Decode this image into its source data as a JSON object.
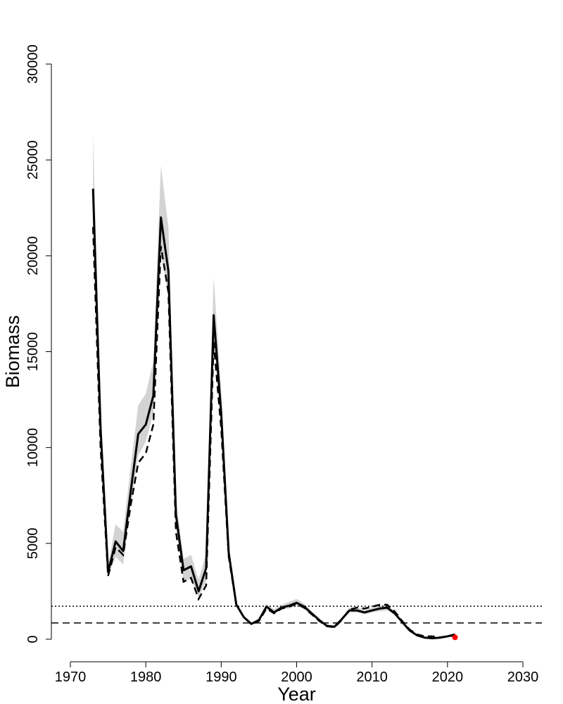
{
  "chart_data": {
    "type": "line",
    "title": "",
    "xlabel": "Year",
    "ylabel": "Biomass",
    "xlim": [
      1970,
      2030
    ],
    "ylim": [
      0,
      30000
    ],
    "x_ticks": [
      1970,
      1980,
      1990,
      2000,
      2010,
      2020,
      2030
    ],
    "y_ticks": [
      0,
      5000,
      10000,
      15000,
      20000,
      25000,
      30000
    ],
    "grid": false,
    "legend": "none",
    "years": [
      1973,
      1974,
      1975,
      1976,
      1977,
      1978,
      1979,
      1980,
      1981,
      1982,
      1983,
      1984,
      1985,
      1986,
      1987,
      1988,
      1989,
      1990,
      1991,
      1992,
      1993,
      1994,
      1995,
      1996,
      1997,
      1998,
      1999,
      2000,
      2001,
      2002,
      2003,
      2004,
      2005,
      2006,
      2007,
      2008,
      2009,
      2010,
      2011,
      2012,
      2013,
      2014,
      2015,
      2016,
      2017,
      2018,
      2019,
      2020,
      2021
    ],
    "series": [
      {
        "style": "solid",
        "values": [
          23500,
          11000,
          3500,
          5100,
          4600,
          7700,
          10700,
          11200,
          12700,
          22000,
          19200,
          6500,
          3600,
          3800,
          2500,
          3700,
          16900,
          11800,
          4500,
          1800,
          1150,
          800,
          1000,
          1700,
          1400,
          1650,
          1750,
          1900,
          1700,
          1350,
          1000,
          700,
          650,
          1050,
          1500,
          1500,
          1400,
          1500,
          1600,
          1650,
          1350,
          900,
          450,
          200,
          80,
          50,
          80,
          150,
          250
        ]
      },
      {
        "style": "dashed",
        "values": [
          21500,
          10000,
          3300,
          4800,
          4400,
          7000,
          9200,
          9700,
          11200,
          20500,
          18100,
          5600,
          3000,
          3200,
          2100,
          2800,
          15500,
          11000,
          4300,
          1800,
          1150,
          780,
          950,
          1600,
          1350,
          1600,
          1700,
          1850,
          1650,
          1300,
          950,
          680,
          620,
          1000,
          1550,
          1650,
          1600,
          1700,
          1800,
          1800,
          1450,
          950,
          500,
          250,
          150,
          150,
          100,
          150,
          200
        ]
      },
      {
        "style": "band",
        "lower": [
          22000,
          10600,
          3300,
          4300,
          3900,
          7000,
          9600,
          10300,
          11800,
          20200,
          17800,
          5900,
          3100,
          3100,
          2200,
          3000,
          15700,
          11000,
          4300,
          1750,
          1100,
          770,
          950,
          1600,
          1300,
          1550,
          1600,
          1750,
          1550,
          1250,
          950,
          680,
          620,
          1000,
          1400,
          1400,
          1300,
          1400,
          1450,
          1500,
          1250,
          850,
          420,
          180,
          70,
          40,
          60,
          130,
          230
        ],
        "upper": [
          26400,
          12000,
          3900,
          6000,
          5600,
          9000,
          12200,
          12800,
          14500,
          24700,
          21500,
          7300,
          4200,
          4400,
          3100,
          4500,
          18900,
          13000,
          4900,
          1950,
          1250,
          870,
          1080,
          1850,
          1550,
          1800,
          1950,
          2100,
          1850,
          1450,
          1070,
          750,
          700,
          1130,
          1650,
          1650,
          1550,
          1650,
          1750,
          1800,
          1450,
          980,
          500,
          230,
          100,
          70,
          100,
          180,
          290
        ]
      }
    ],
    "reference_lines": [
      {
        "style": "dotted",
        "y": 1720
      },
      {
        "style": "dashed",
        "y": 850
      }
    ],
    "points": [
      {
        "x": 2021,
        "y": 100,
        "color": "#ff0000"
      }
    ]
  }
}
